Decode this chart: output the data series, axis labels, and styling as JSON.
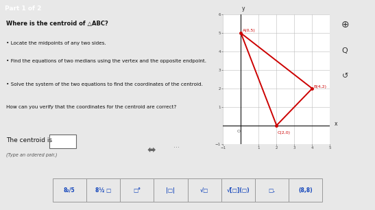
{
  "title_bar": "Part 1 of 2",
  "title_bar_color": "#6080a0",
  "bg_color": "#e8e8e8",
  "main_bg": "#f5f5f5",
  "question_text": "Where is the centroid of △ABC?",
  "bullet1": "• Locate the midpoints of any two sides.",
  "bullet2": "• Find the equations of two medians using the vertex and the opposite endpoint.",
  "bullet3": "• Solve the system of the two equations to find the coordinates of the centroid.",
  "bullet4": "How can you verify that the coordinates for the centroid are correct?",
  "answer_label": "The centroid is",
  "answer_sub": "(Type an ordered pair.)",
  "triangle_A": [
    0,
    5
  ],
  "triangle_B": [
    4,
    2
  ],
  "triangle_C": [
    2,
    0
  ],
  "triangle_color": "#cc0000",
  "label_A": "A(0,5)",
  "label_B": "B(4,2)",
  "label_C": "C(2,0)",
  "label_color": "#cc0000",
  "grid_xlim": [
    -1,
    5
  ],
  "grid_ylim": [
    -1,
    6
  ],
  "axis_color": "#222222",
  "grid_color": "#bbbbbb",
  "toolbar_bg": "#cccccc",
  "toolbar_buttons": [
    "8₂/5",
    "8½ □",
    "□°",
    "|□|",
    "√□",
    "√[□](□)",
    "□.",
    "(8,8)"
  ],
  "separator_color": "#aaaaaa",
  "font_size_question": 6.0,
  "font_size_bullet": 5.2,
  "font_size_answer": 6.5,
  "font_size_toolbar": 5.5
}
